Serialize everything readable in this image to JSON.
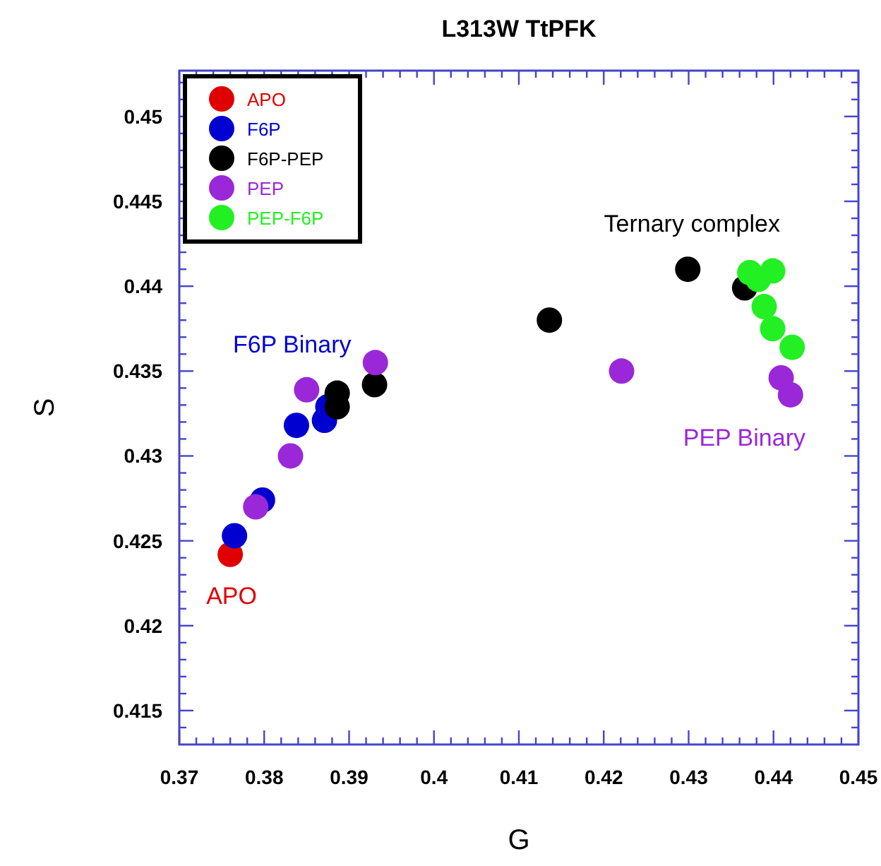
{
  "chart_data": {
    "type": "scatter",
    "title": "L313W TtPFK",
    "xlabel": "G",
    "ylabel": "S",
    "xlim": [
      0.37,
      0.45
    ],
    "ylim": [
      0.413,
      0.4527
    ],
    "xticks": [
      0.37,
      0.38,
      0.39,
      0.4,
      0.41,
      0.42,
      0.43,
      0.44,
      0.45
    ],
    "yticks": [
      0.415,
      0.42,
      0.425,
      0.43,
      0.435,
      0.44,
      0.445,
      0.45
    ],
    "marker": "circle",
    "legend": "top left",
    "grid": false,
    "series": [
      {
        "name": "APO",
        "color": "#e00000",
        "x": [
          0.376
        ],
        "values": [
          0.4242
        ]
      },
      {
        "name": "F6P",
        "color": "#0000d0",
        "x": [
          0.3765,
          0.3798,
          0.3838,
          0.3871,
          0.3875
        ],
        "values": [
          0.4253,
          0.4274,
          0.4318,
          0.4321,
          0.4329
        ]
      },
      {
        "name": "F6P-PEP",
        "color": "#000000",
        "x": [
          0.3886,
          0.3886,
          0.393,
          0.4136,
          0.4299,
          0.4366
        ],
        "values": [
          0.4337,
          0.4329,
          0.4342,
          0.438,
          0.441,
          0.4399
        ]
      },
      {
        "name": "PEP",
        "color": "#9a28d8",
        "x": [
          0.3931,
          0.385,
          0.3831,
          0.379,
          0.4221,
          0.4409,
          0.442
        ],
        "values": [
          0.4355,
          0.4339,
          0.43,
          0.427,
          0.435,
          0.4346,
          0.4336
        ]
      },
      {
        "name": "PEP-F6P",
        "color": "#22f022",
        "x": [
          0.4372,
          0.4382,
          0.4399,
          0.4389,
          0.4399,
          0.4422
        ],
        "values": [
          0.4408,
          0.4404,
          0.4409,
          0.4388,
          0.4375,
          0.4364
        ]
      }
    ],
    "annotations": [
      "Ternary complex",
      "F6P Binary",
      "PEP Binary",
      "APO"
    ]
  }
}
